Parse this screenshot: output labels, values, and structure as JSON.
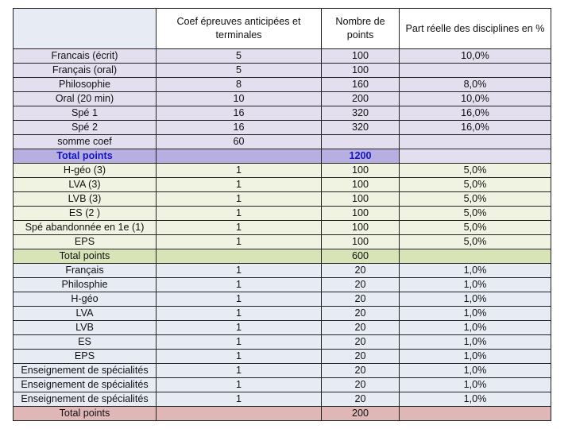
{
  "headers": {
    "label": "",
    "coef": "Coef épreuves anticipées et terminales",
    "points": "Nombre de points",
    "part": "Part réelle des disciplines en %"
  },
  "sections": [
    {
      "style": "lilac",
      "rows": [
        {
          "label": "Francais (écrit)",
          "coef": "5",
          "points": "100",
          "part": "10,0%"
        },
        {
          "label": "Français (oral)",
          "coef": "5",
          "points": "100",
          "part": ""
        },
        {
          "label": "Philosophie",
          "coef": "8",
          "points": "160",
          "part": "8,0%"
        },
        {
          "label": "Oral (20 min)",
          "coef": "10",
          "points": "200",
          "part": "10,0%"
        },
        {
          "label": "Spé 1",
          "coef": "16",
          "points": "320",
          "part": "16,0%"
        },
        {
          "label": "Spé 2",
          "coef": "16",
          "points": "320",
          "part": "16,0%"
        },
        {
          "label": "somme coef",
          "coef": "60",
          "points": "",
          "part": ""
        }
      ],
      "total": {
        "label": "Total points",
        "coef": "",
        "points": "1200",
        "part": ""
      },
      "total_style": "total-blue"
    },
    {
      "style": "cream",
      "rows": [
        {
          "label": "H-géo (3)",
          "coef": "1",
          "points": "100",
          "part": "5,0%"
        },
        {
          "label": "LVA (3)",
          "coef": "1",
          "points": "100",
          "part": "5,0%"
        },
        {
          "label": "LVB (3)",
          "coef": "1",
          "points": "100",
          "part": "5,0%"
        },
        {
          "label": "ES (2 )",
          "coef": "1",
          "points": "100",
          "part": "5,0%"
        },
        {
          "label": "Spé abandonnée en 1e (1)",
          "coef": "1",
          "points": "100",
          "part": "5,0%"
        },
        {
          "label": "EPS",
          "coef": "1",
          "points": "100",
          "part": "5,0%"
        }
      ],
      "total": {
        "label": "Total points",
        "coef": "",
        "points": "600",
        "part": ""
      },
      "total_style": "total-green"
    },
    {
      "style": "blue",
      "rows": [
        {
          "label": "Français",
          "coef": "1",
          "points": "20",
          "part": "1,0%"
        },
        {
          "label": "Philosphie",
          "coef": "1",
          "points": "20",
          "part": "1,0%"
        },
        {
          "label": "H-géo",
          "coef": "1",
          "points": "20",
          "part": "1,0%"
        },
        {
          "label": "LVA",
          "coef": "1",
          "points": "20",
          "part": "1,0%"
        },
        {
          "label": "LVB",
          "coef": "1",
          "points": "20",
          "part": "1,0%"
        },
        {
          "label": "ES",
          "coef": "1",
          "points": "20",
          "part": "1,0%"
        },
        {
          "label": "EPS",
          "coef": "1",
          "points": "20",
          "part": "1,0%"
        },
        {
          "label": "Enseignement de spécialités",
          "coef": "1",
          "points": "20",
          "part": "1,0%"
        },
        {
          "label": "Enseignement de spécialités",
          "coef": "1",
          "points": "20",
          "part": "1,0%"
        },
        {
          "label": "Enseignement de spécialités",
          "coef": "1",
          "points": "20",
          "part": "1,0%"
        }
      ],
      "total": {
        "label": "Total points",
        "coef": "",
        "points": "200",
        "part": ""
      },
      "total_style": "total-pink"
    }
  ]
}
